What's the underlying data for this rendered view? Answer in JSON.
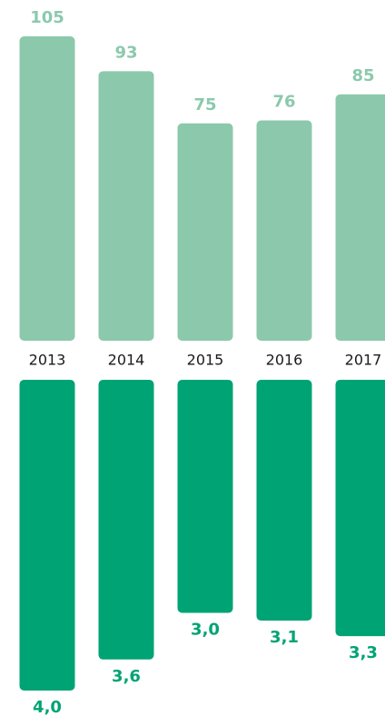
{
  "chart_data": {
    "type": "bar",
    "categories": [
      "2013",
      "2014",
      "2015",
      "2016",
      "2017"
    ],
    "series": [
      {
        "color": "#8cc9ac",
        "values": [
          105,
          93,
          75,
          76,
          85
        ]
      },
      {
        "color": "#00a374",
        "values": [
          4.0,
          3.6,
          3.0,
          3.1,
          3.3
        ],
        "value_labels": [
          "4,0",
          "3,6",
          "3,0",
          "3,1",
          "3,3"
        ]
      }
    ]
  }
}
